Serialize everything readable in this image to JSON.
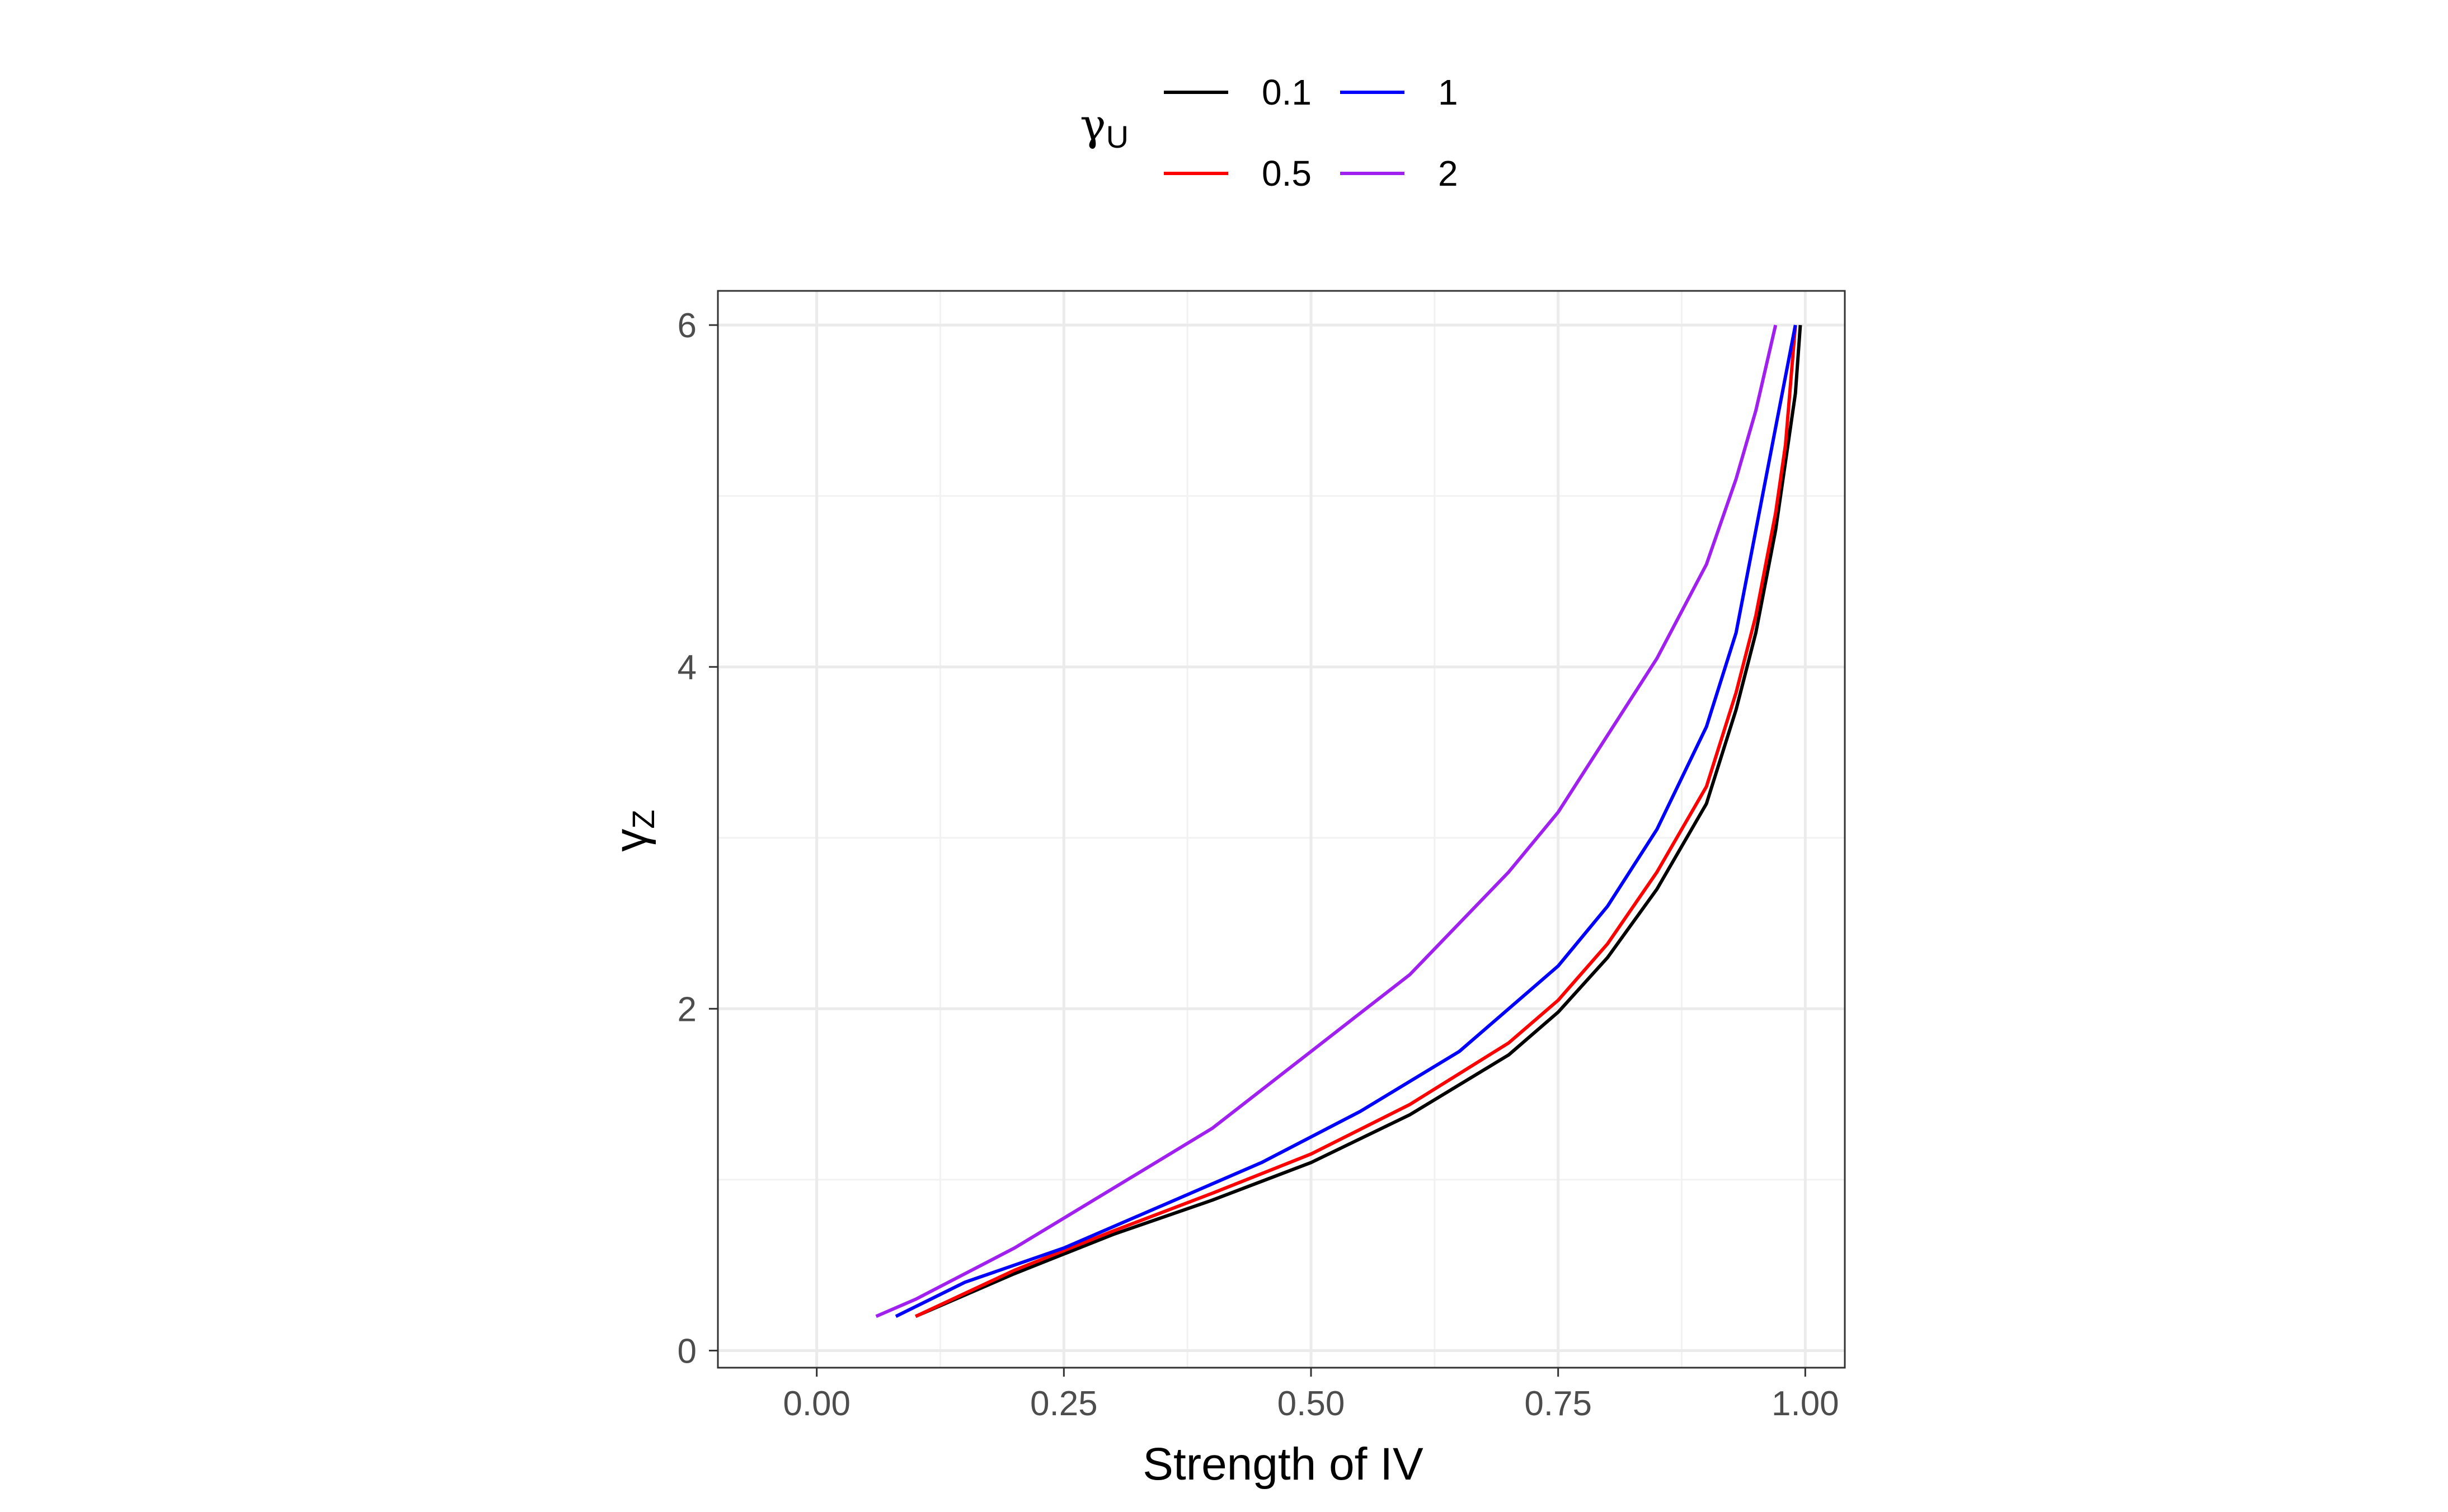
{
  "chart_data": {
    "type": "line",
    "xlabel": "Strength of IV",
    "ylabel": {
      "symbol": "γ",
      "subscript": "Z"
    },
    "legend": {
      "title": {
        "symbol": "γ",
        "subscript": "U"
      },
      "placement": "top"
    },
    "xlim": [
      -0.1,
      1.04
    ],
    "ylim": [
      -0.1,
      6.2
    ],
    "x_ticks": [
      0,
      0.25,
      0.5,
      0.75,
      1
    ],
    "x_tick_labels": [
      "0.00",
      "0.25",
      "0.50",
      "0.75",
      "1.00"
    ],
    "y_ticks": [
      0,
      2,
      4,
      6
    ],
    "y_tick_labels": [
      "0",
      "2",
      "4",
      "6"
    ],
    "grid": true,
    "series": [
      {
        "name": "0.1",
        "color": "#000000",
        "points": [
          [
            0.1,
            0.2
          ],
          [
            0.2,
            0.45
          ],
          [
            0.3,
            0.68
          ],
          [
            0.4,
            0.88
          ],
          [
            0.5,
            1.1
          ],
          [
            0.6,
            1.38
          ],
          [
            0.7,
            1.73
          ],
          [
            0.75,
            1.98
          ],
          [
            0.8,
            2.3
          ],
          [
            0.85,
            2.7
          ],
          [
            0.9,
            3.2
          ],
          [
            0.93,
            3.75
          ],
          [
            0.95,
            4.2
          ],
          [
            0.97,
            4.8
          ],
          [
            0.98,
            5.2
          ],
          [
            0.99,
            5.6
          ],
          [
            0.995,
            6.0
          ]
        ]
      },
      {
        "name": "0.5",
        "color": "#ff0000",
        "points": [
          [
            0.1,
            0.2
          ],
          [
            0.2,
            0.47
          ],
          [
            0.3,
            0.7
          ],
          [
            0.4,
            0.92
          ],
          [
            0.5,
            1.15
          ],
          [
            0.6,
            1.44
          ],
          [
            0.7,
            1.8
          ],
          [
            0.75,
            2.05
          ],
          [
            0.8,
            2.38
          ],
          [
            0.85,
            2.8
          ],
          [
            0.9,
            3.3
          ],
          [
            0.93,
            3.85
          ],
          [
            0.95,
            4.3
          ],
          [
            0.97,
            4.9
          ],
          [
            0.98,
            5.3
          ],
          [
            0.99,
            6.0
          ]
        ]
      },
      {
        "name": "1",
        "color": "#0000ff",
        "points": [
          [
            0.08,
            0.2
          ],
          [
            0.15,
            0.4
          ],
          [
            0.25,
            0.6
          ],
          [
            0.35,
            0.85
          ],
          [
            0.45,
            1.1
          ],
          [
            0.55,
            1.4
          ],
          [
            0.65,
            1.75
          ],
          [
            0.75,
            2.25
          ],
          [
            0.8,
            2.6
          ],
          [
            0.85,
            3.05
          ],
          [
            0.9,
            3.65
          ],
          [
            0.93,
            4.2
          ],
          [
            0.95,
            4.8
          ],
          [
            0.97,
            5.4
          ],
          [
            0.99,
            6.0
          ]
        ]
      },
      {
        "name": "2",
        "color": "#a020f0",
        "points": [
          [
            0.06,
            0.2
          ],
          [
            0.1,
            0.3
          ],
          [
            0.2,
            0.6
          ],
          [
            0.3,
            0.95
          ],
          [
            0.4,
            1.3
          ],
          [
            0.5,
            1.75
          ],
          [
            0.6,
            2.2
          ],
          [
            0.7,
            2.8
          ],
          [
            0.75,
            3.15
          ],
          [
            0.8,
            3.6
          ],
          [
            0.85,
            4.05
          ],
          [
            0.9,
            4.6
          ],
          [
            0.93,
            5.1
          ],
          [
            0.95,
            5.5
          ],
          [
            0.97,
            6.0
          ]
        ]
      }
    ]
  }
}
